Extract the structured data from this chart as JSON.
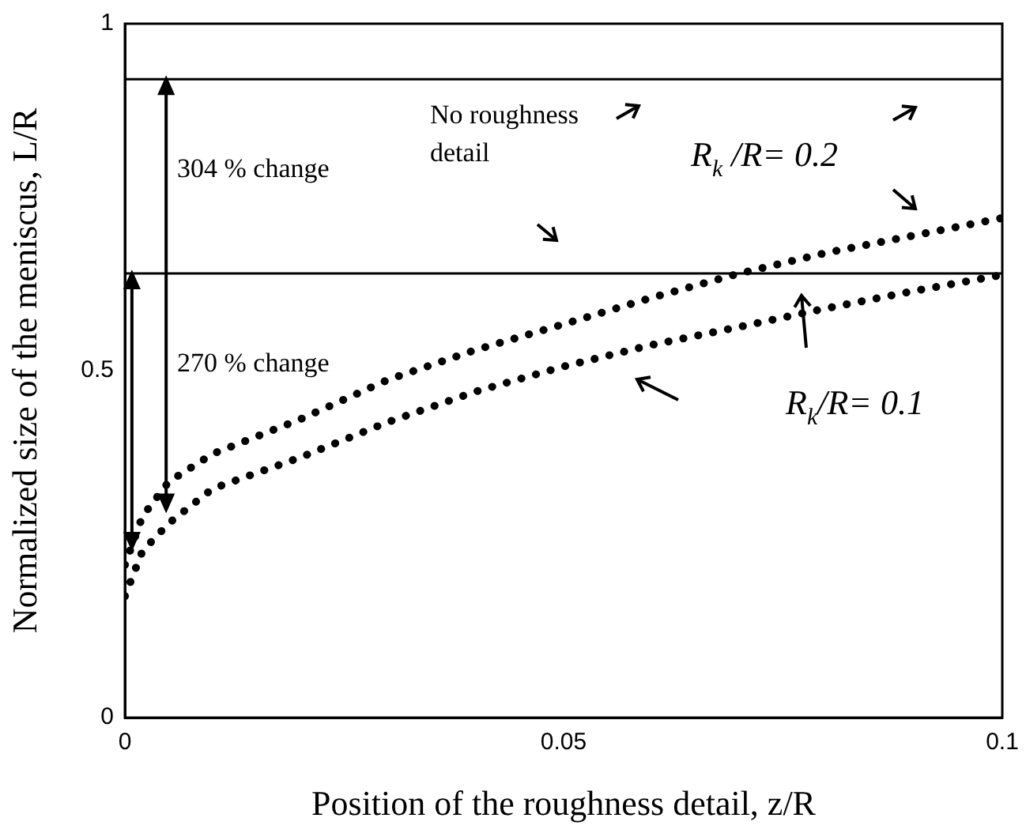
{
  "chart_data": {
    "type": "line",
    "xlabel": "Position of the roughness detail, z/R",
    "ylabel": "Normalized size of the meniscus, L/R",
    "x": [
      0,
      0.002,
      0.005,
      0.01,
      0.02,
      0.03,
      0.04,
      0.05,
      0.06,
      0.07,
      0.08,
      0.09,
      0.1
    ],
    "series": [
      {
        "color": "#000000",
        "values": [
          0.22,
          0.29,
          0.34,
          0.38,
          0.43,
          0.487,
          0.53,
          0.567,
          0.605,
          0.64,
          0.67,
          0.695,
          0.72
        ]
      },
      {
        "color": "#000000",
        "values": [
          0.175,
          0.24,
          0.28,
          0.33,
          0.375,
          0.426,
          0.47,
          0.506,
          0.537,
          0.563,
          0.59,
          0.615,
          0.638
        ]
      }
    ],
    "xlim": [
      0,
      0.1
    ],
    "xticks": [
      0,
      0.05,
      0.1
    ],
    "ylim": [
      0,
      1
    ],
    "yticks": [
      0,
      0.5,
      1
    ],
    "ref_lines": [
      {
        "axis": "y",
        "value": 0.92,
        "color": "#000000"
      },
      {
        "axis": "y",
        "value": 0.64,
        "color": "#000000"
      }
    ],
    "annotations": [
      "304 % change",
      "270 % change",
      "No roughness detail",
      "R$_{k}$ /R= 0.2",
      "R$_{k}$/R= 0.1"
    ],
    "grid": false,
    "legend": false,
    "marker": "none",
    "line_style": "dotted"
  }
}
